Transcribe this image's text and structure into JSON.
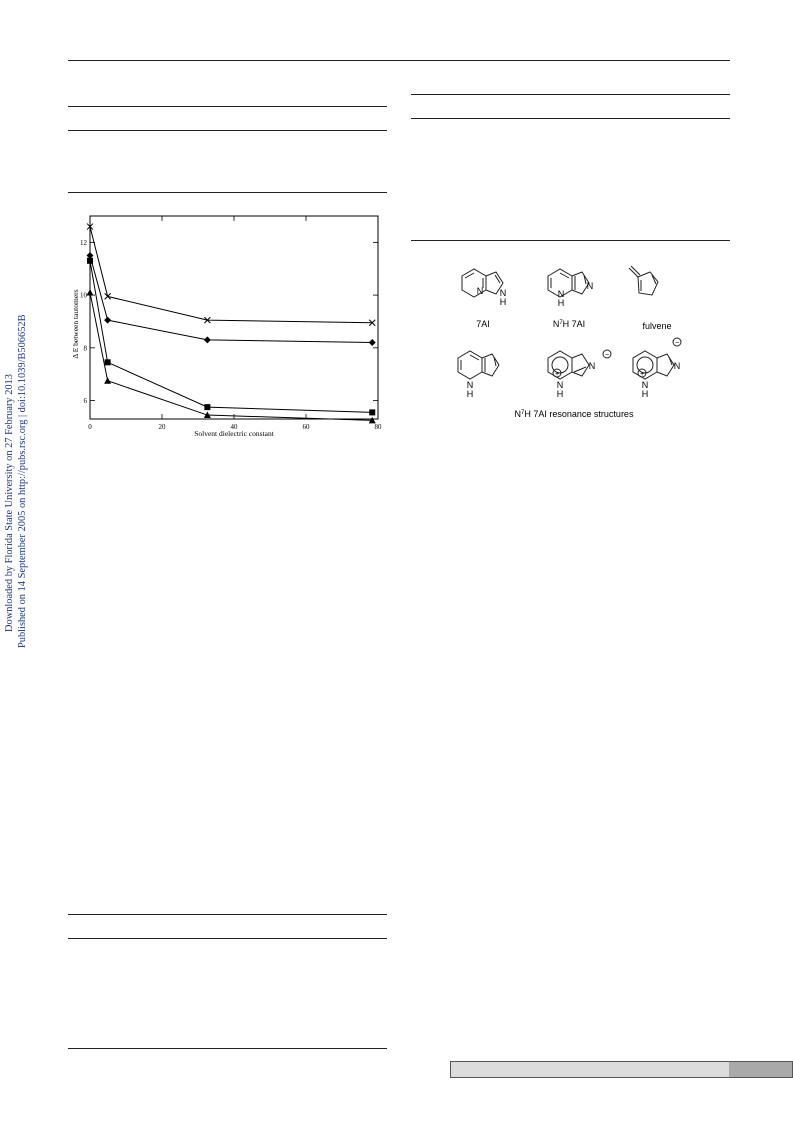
{
  "side_note": {
    "line1": "Downloaded by Florida State University on 27 February 2013",
    "line2": "Published on 14 September 2005 on http://pubs.rsc.org | doi:10.1039/B506652B"
  },
  "chart_data": {
    "type": "line",
    "xlabel": "Solvent dielectric constant",
    "ylabel": "Δ E between tautomers",
    "xlim": [
      0,
      80
    ],
    "ylim": [
      5.3,
      13
    ],
    "x_ticks": [
      0,
      20,
      40,
      60,
      80
    ],
    "y_ticks": [
      6,
      8,
      10,
      12
    ],
    "grid": false,
    "series": [
      {
        "marker": "x",
        "x": [
          0,
          4.9,
          32.6,
          78.4
        ],
        "y": [
          12.6,
          9.95,
          9.05,
          8.95
        ]
      },
      {
        "marker": "diamond",
        "x": [
          0,
          4.9,
          32.6,
          78.4
        ],
        "y": [
          11.5,
          9.05,
          8.3,
          8.2
        ]
      },
      {
        "marker": "square",
        "x": [
          0,
          4.9,
          32.6,
          78.4
        ],
        "y": [
          11.3,
          7.45,
          5.75,
          5.55
        ]
      },
      {
        "marker": "triangle",
        "x": [
          0,
          4.9,
          32.6,
          78.4
        ],
        "y": [
          10.1,
          6.75,
          5.45,
          5.25
        ]
      }
    ]
  },
  "structures": {
    "labels": {
      "s1": "7AI",
      "s2_prefix": "N",
      "s2_sup": "7",
      "s2_suffix": "H 7AI",
      "s3": "fulvene",
      "caption_prefix": "N",
      "caption_sup": "7",
      "caption_suffix": "H  7AI  resonance  structures"
    },
    "atoms": {
      "n": "N",
      "h": "H",
      "plus": "+",
      "minus": "−"
    }
  }
}
